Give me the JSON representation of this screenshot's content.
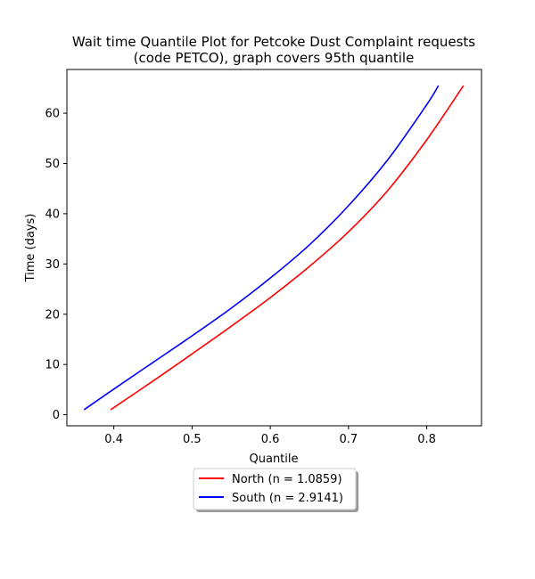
{
  "chart_data": {
    "type": "line",
    "title": "Wait time Quantile Plot for Petcoke Dust Complaint  requests\n(code PETCO), graph covers 95th quantile",
    "xlabel": "Quantile",
    "ylabel": "Time (days)",
    "xlim": [
      0.34,
      0.87
    ],
    "ylim": [
      -2.2,
      68.7
    ],
    "xticks": [
      0.4,
      0.5,
      0.6,
      0.7,
      0.8
    ],
    "xtick_labels": [
      "0.4",
      "0.5",
      "0.6",
      "0.7",
      "0.8"
    ],
    "yticks": [
      0,
      10,
      20,
      30,
      40,
      50,
      60
    ],
    "ytick_labels": [
      "0",
      "10",
      "20",
      "30",
      "40",
      "50",
      "60"
    ],
    "grid": false,
    "legend_position": "below",
    "series": [
      {
        "name": "North (n = 1.0859)",
        "color": "#ff0000",
        "x": [
          0.396,
          0.45,
          0.5,
          0.55,
          0.6,
          0.65,
          0.7,
          0.75,
          0.8,
          0.847
        ],
        "y": [
          1.0,
          6.7,
          12.1,
          17.6,
          23.3,
          29.5,
          36.4,
          44.6,
          54.7,
          65.5
        ]
      },
      {
        "name": "South (n = 2.9141)",
        "color": "#0000ff",
        "x": [
          0.362,
          0.4,
          0.45,
          0.5,
          0.55,
          0.6,
          0.65,
          0.7,
          0.75,
          0.8,
          0.815
        ],
        "y": [
          1.0,
          5.1,
          10.4,
          15.7,
          21.2,
          27.2,
          33.8,
          41.6,
          50.7,
          61.7,
          65.5
        ]
      }
    ]
  }
}
